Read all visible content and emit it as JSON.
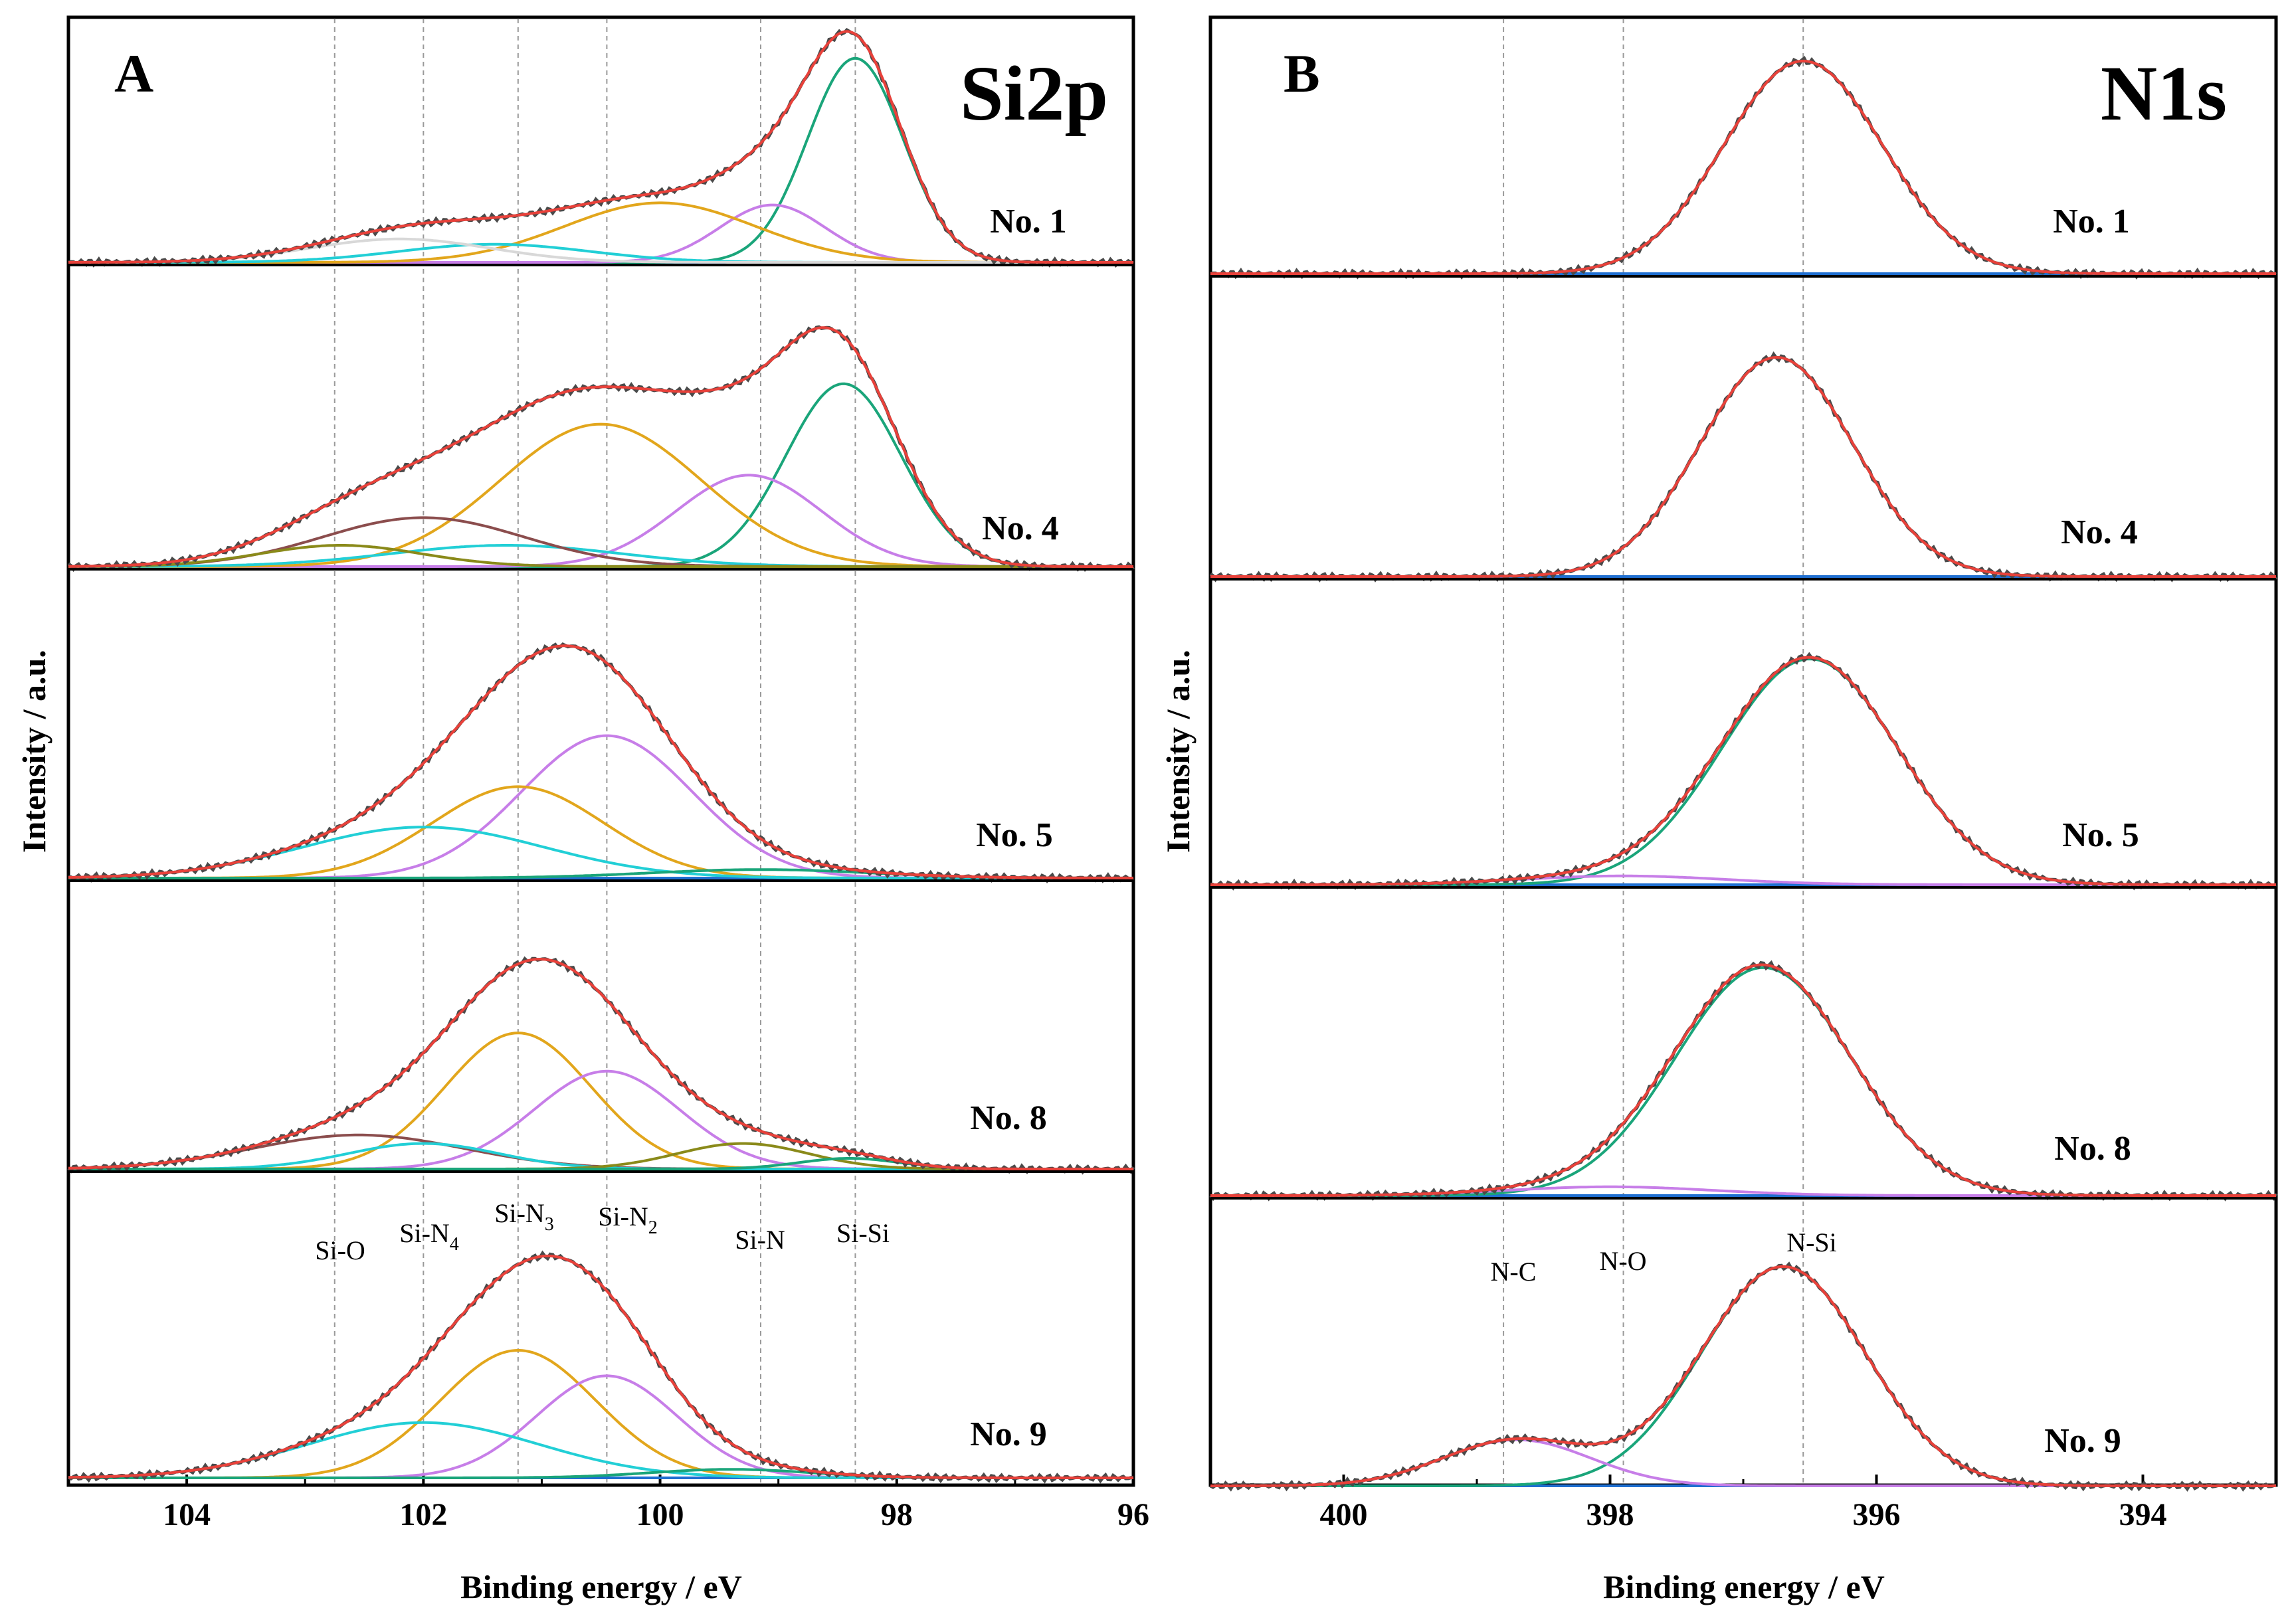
{
  "chart_data": [
    {
      "type": "line",
      "panel_label": "A",
      "title": "Si2p",
      "xlabel": "Binding energy / eV",
      "ylabel": "Intensity / a.u.",
      "xlim": [
        105,
        96
      ],
      "x_ticks": [
        104,
        102,
        100,
        98,
        96
      ],
      "x_tick_labels": [
        "104",
        "102",
        "100",
        "98",
        "96"
      ],
      "reference_lines": [
        {
          "label": "Si-O",
          "x": 102.75
        },
        {
          "label": "Si-N4",
          "x": 102.0
        },
        {
          "label": "Si-N3",
          "x": 101.2
        },
        {
          "label": "Si-N2",
          "x": 100.45
        },
        {
          "label": "Si-N",
          "x": 99.15
        },
        {
          "label": "Si-Si",
          "x": 98.35
        }
      ],
      "ref_label_texts": {
        "si_o": "Si-O",
        "si_n4": "Si-N",
        "si_n4_sub": "4",
        "si_n3": "Si-N",
        "si_n3_sub": "3",
        "si_n2": "Si-N",
        "si_n2_sub": "2",
        "si_n": "Si-N",
        "si_si": "Si-Si"
      },
      "samples": [
        {
          "name": "No. 1",
          "baseline": 0.0,
          "components": [
            {
              "assignment": "Si-Si",
              "center": 98.35,
              "height": 0.96,
              "fwhm": 0.95,
              "color": "#1aa57a"
            },
            {
              "assignment": "Si-N",
              "center": 99.05,
              "height": 0.27,
              "fwhm": 1.05,
              "color": "#c77ee8"
            },
            {
              "assignment": "Si-N2",
              "center": 100.0,
              "height": 0.28,
              "fwhm": 1.9,
              "color": "#e2a61c"
            },
            {
              "assignment": "Si-N4",
              "center": 101.4,
              "height": 0.085,
              "fwhm": 1.9,
              "color": "#22cfd6"
            },
            {
              "assignment": "Si-O",
              "center": 102.2,
              "height": 0.11,
              "fwhm": 1.8,
              "color": "#d8d8d8"
            }
          ]
        },
        {
          "name": "No. 4",
          "baseline": 0.0,
          "components": [
            {
              "assignment": "Si-Si",
              "center": 98.45,
              "height": 0.86,
              "fwhm": 1.15,
              "color": "#1aa57a"
            },
            {
              "assignment": "Si-N",
              "center": 99.25,
              "height": 0.43,
              "fwhm": 1.45,
              "color": "#c77ee8"
            },
            {
              "assignment": "Si-N2",
              "center": 100.5,
              "height": 0.67,
              "fwhm": 2.0,
              "color": "#e2a61c"
            },
            {
              "assignment": "Si-N3",
              "center": 101.3,
              "height": 0.1,
              "fwhm": 2.3,
              "color": "#22cfd6"
            },
            {
              "assignment": "Si-N4",
              "center": 102.0,
              "height": 0.23,
              "fwhm": 2.0,
              "color": "#8b4d4d"
            },
            {
              "assignment": "Si-O",
              "center": 102.7,
              "height": 0.1,
              "fwhm": 1.6,
              "color": "#8a8a1a"
            }
          ]
        },
        {
          "name": "No. 5",
          "baseline": 0.0,
          "components": [
            {
              "assignment": "Si-N2",
              "center": 100.45,
              "height": 0.67,
              "fwhm": 1.7,
              "color": "#c77ee8"
            },
            {
              "assignment": "Si-N3",
              "center": 101.2,
              "height": 0.43,
              "fwhm": 1.7,
              "color": "#e2a61c"
            },
            {
              "assignment": "Si-N4",
              "center": 102.0,
              "height": 0.24,
              "fwhm": 2.4,
              "color": "#22cfd6"
            },
            {
              "assignment": "Si-N",
              "center": 99.15,
              "height": 0.04,
              "fwhm": 2.2,
              "color": "#1aa57a"
            }
          ]
        },
        {
          "name": "No. 8",
          "baseline": 0.0,
          "components": [
            {
              "assignment": "Si-N3",
              "center": 101.2,
              "height": 0.64,
              "fwhm": 1.45,
              "color": "#e2a61c"
            },
            {
              "assignment": "Si-N2",
              "center": 100.45,
              "height": 0.46,
              "fwhm": 1.45,
              "color": "#c77ee8"
            },
            {
              "assignment": "Si-O",
              "center": 102.55,
              "height": 0.16,
              "fwhm": 2.1,
              "color": "#8b4d4d"
            },
            {
              "assignment": "Si-N4",
              "center": 102.0,
              "height": 0.12,
              "fwhm": 1.5,
              "color": "#22cfd6"
            },
            {
              "assignment": "Si-N",
              "center": 99.3,
              "height": 0.12,
              "fwhm": 1.3,
              "color": "#8a8a1a"
            },
            {
              "assignment": "Si-Si",
              "center": 98.4,
              "height": 0.05,
              "fwhm": 1.0,
              "color": "#1aa57a"
            }
          ]
        },
        {
          "name": "No. 9",
          "baseline": 0.0,
          "components": [
            {
              "assignment": "Si-N3",
              "center": 101.2,
              "height": 0.6,
              "fwhm": 1.55,
              "color": "#e2a61c"
            },
            {
              "assignment": "Si-N2",
              "center": 100.45,
              "height": 0.48,
              "fwhm": 1.4,
              "color": "#c77ee8"
            },
            {
              "assignment": "Si-N4",
              "center": 102.0,
              "height": 0.26,
              "fwhm": 2.3,
              "color": "#22cfd6"
            },
            {
              "assignment": "Si-N",
              "center": 99.4,
              "height": 0.04,
              "fwhm": 1.6,
              "color": "#1aa57a"
            }
          ]
        }
      ]
    },
    {
      "type": "line",
      "panel_label": "B",
      "title": "N1s",
      "xlabel": "Binding energy / eV",
      "ylabel": "Intensity / a.u.",
      "xlim": [
        401,
        393
      ],
      "x_ticks": [
        400,
        398,
        396,
        394
      ],
      "x_tick_labels": [
        "400",
        "398",
        "396",
        "394"
      ],
      "reference_lines": [
        {
          "label": "N-C",
          "x": 398.8
        },
        {
          "label": "N-O",
          "x": 397.9
        },
        {
          "label": "N-Si",
          "x": 396.55
        }
      ],
      "samples": [
        {
          "name": "No. 1",
          "baseline": 0.0,
          "components": [
            {
              "assignment": "N-Si",
              "center": 396.55,
              "height": 0.97,
              "fwhm": 1.4,
              "color": "#1aa57a"
            }
          ]
        },
        {
          "name": "No. 4",
          "baseline": 0.0,
          "components": [
            {
              "assignment": "N-Si",
              "center": 396.75,
              "height": 1.0,
              "fwhm": 1.35,
              "color": "#1aa57a"
            }
          ]
        },
        {
          "name": "No. 5",
          "baseline": 0.0,
          "components": [
            {
              "assignment": "N-Si",
              "center": 396.5,
              "height": 1.03,
              "fwhm": 1.55,
              "color": "#1aa57a"
            },
            {
              "assignment": "N-O",
              "center": 397.9,
              "height": 0.04,
              "fwhm": 1.8,
              "color": "#c77ee8"
            }
          ]
        },
        {
          "name": "No. 8",
          "baseline": 0.0,
          "components": [
            {
              "assignment": "N-Si",
              "center": 396.85,
              "height": 1.04,
              "fwhm": 1.55,
              "color": "#1aa57a"
            },
            {
              "assignment": "N-O",
              "center": 398.0,
              "height": 0.04,
              "fwhm": 1.8,
              "color": "#c77ee8"
            }
          ]
        },
        {
          "name": "No. 9",
          "baseline": 0.0,
          "components": [
            {
              "assignment": "N-Si",
              "center": 396.7,
              "height": 1.0,
              "fwhm": 1.45,
              "color": "#1aa57a"
            },
            {
              "assignment": "N-C",
              "center": 398.7,
              "height": 0.21,
              "fwhm": 1.3,
              "color": "#c77ee8"
            }
          ]
        }
      ]
    }
  ],
  "style": {
    "envelope_color": "#e8413a",
    "raw_color": "#4a4a4a",
    "background_line_color": "#1f6fd1",
    "ref_line_color": "#9a9a9a"
  }
}
